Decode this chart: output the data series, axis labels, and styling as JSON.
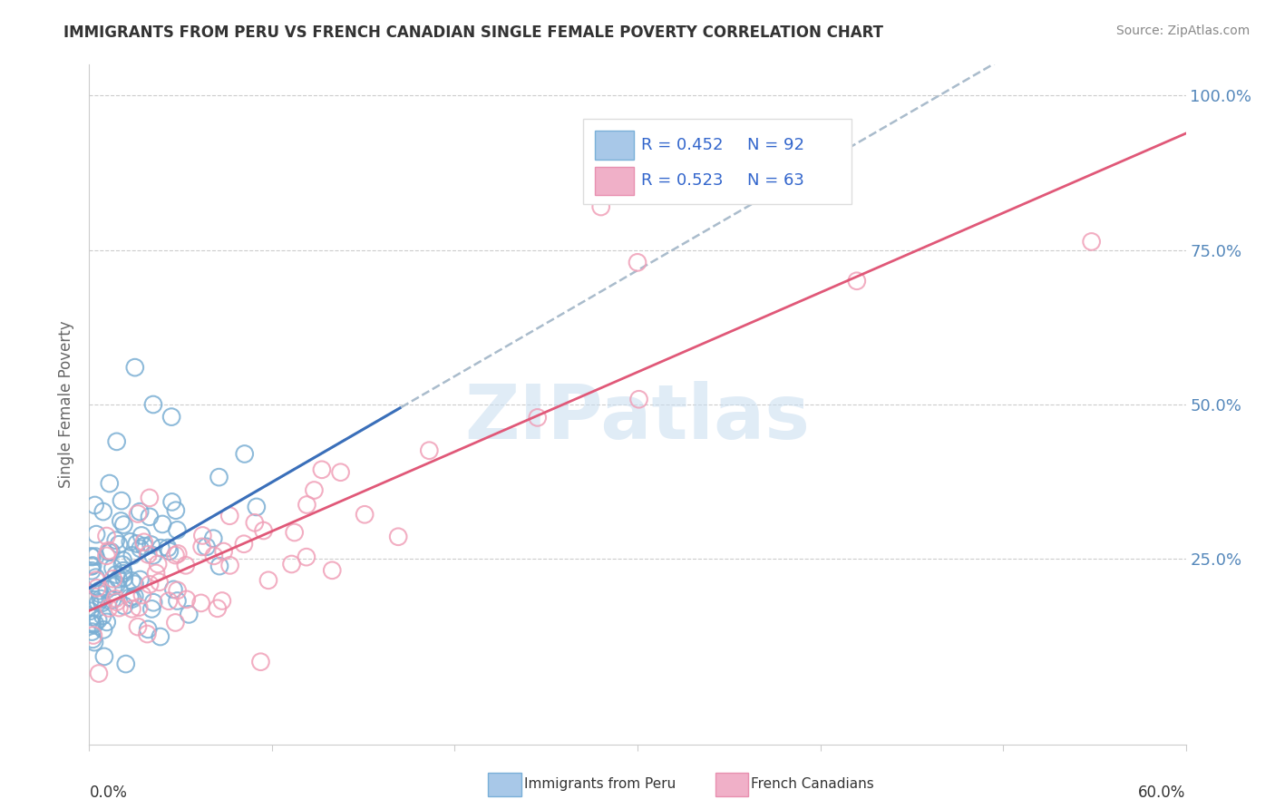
{
  "title": "IMMIGRANTS FROM PERU VS FRENCH CANADIAN SINGLE FEMALE POVERTY CORRELATION CHART",
  "source": "Source: ZipAtlas.com",
  "ylabel": "Single Female Poverty",
  "yticks": [
    0.25,
    0.5,
    0.75,
    1.0
  ],
  "ytick_labels": [
    "25.0%",
    "50.0%",
    "75.0%",
    "100.0%"
  ],
  "series1_color": "#7bafd4",
  "series2_color": "#f0a0b8",
  "line1_color": "#3a6fba",
  "line2_color": "#e05878",
  "line_dash_color": "#aabccc",
  "watermark": "ZIPatlas",
  "background_color": "#ffffff",
  "R1": 0.452,
  "N1": 92,
  "R2": 0.523,
  "N2": 63,
  "xmin": 0.0,
  "xmax": 0.6,
  "ymin": -0.05,
  "ymax": 1.05,
  "legend_text_color": "#3366cc",
  "legend_n_color": "#3366cc",
  "title_color": "#333333",
  "source_color": "#888888",
  "tick_color": "#5588bb",
  "ylabel_color": "#666666"
}
